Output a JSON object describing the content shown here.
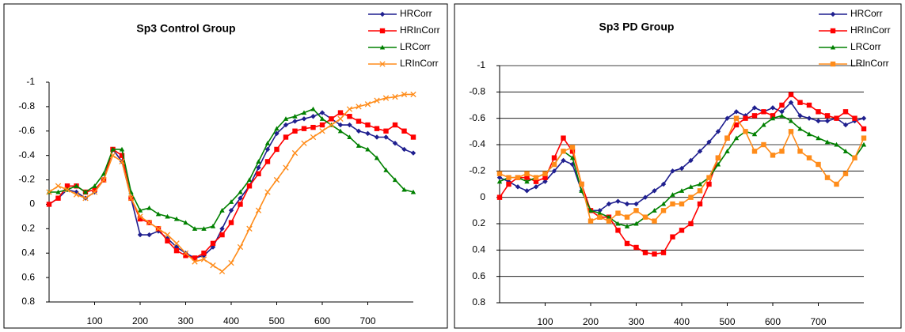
{
  "chart_data": [
    {
      "type": "line",
      "title": "Sp3 Control Group",
      "y_inverted": true,
      "grid": false,
      "xlim": [
        0,
        800
      ],
      "xticks": [
        100,
        200,
        300,
        400,
        500,
        600,
        700
      ],
      "ylim": [
        -1,
        0.8
      ],
      "yticks": [
        -1,
        -0.8,
        -0.6,
        -0.4,
        -0.2,
        0,
        0.2,
        0.4,
        0.6,
        0.8
      ],
      "x": [
        0,
        20,
        40,
        60,
        80,
        100,
        120,
        140,
        160,
        180,
        200,
        220,
        240,
        260,
        280,
        300,
        320,
        340,
        360,
        380,
        400,
        420,
        440,
        460,
        480,
        500,
        520,
        540,
        560,
        580,
        600,
        620,
        640,
        660,
        680,
        700,
        720,
        740,
        760,
        780,
        800
      ],
      "series": [
        {
          "name": "HRCorr",
          "color": "#1f1f8f",
          "marker": "diamond",
          "values": [
            0,
            -0.05,
            -0.12,
            -0.1,
            -0.05,
            -0.1,
            -0.2,
            -0.45,
            -0.35,
            -0.05,
            0.25,
            0.25,
            0.22,
            0.28,
            0.35,
            0.4,
            0.44,
            0.42,
            0.35,
            0.2,
            0.05,
            -0.05,
            -0.15,
            -0.3,
            -0.45,
            -0.58,
            -0.65,
            -0.68,
            -0.7,
            -0.72,
            -0.75,
            -0.7,
            -0.65,
            -0.65,
            -0.6,
            -0.58,
            -0.55,
            -0.55,
            -0.5,
            -0.45,
            -0.42
          ]
        },
        {
          "name": "HRInCorr",
          "color": "#ff0000",
          "marker": "square",
          "values": [
            0,
            -0.05,
            -0.15,
            -0.15,
            -0.1,
            -0.12,
            -0.2,
            -0.45,
            -0.4,
            -0.05,
            0.12,
            0.15,
            0.2,
            0.3,
            0.38,
            0.42,
            0.44,
            0.4,
            0.32,
            0.25,
            0.15,
            0.0,
            -0.15,
            -0.25,
            -0.35,
            -0.45,
            -0.55,
            -0.6,
            -0.62,
            -0.63,
            -0.65,
            -0.7,
            -0.75,
            -0.72,
            -0.68,
            -0.65,
            -0.62,
            -0.6,
            -0.65,
            -0.6,
            -0.55
          ]
        },
        {
          "name": "LRCorr",
          "color": "#008000",
          "marker": "triangle",
          "values": [
            -0.1,
            -0.1,
            -0.12,
            -0.15,
            -0.1,
            -0.15,
            -0.25,
            -0.45,
            -0.45,
            -0.1,
            0.05,
            0.03,
            0.08,
            0.1,
            0.12,
            0.15,
            0.2,
            0.2,
            0.18,
            0.05,
            -0.02,
            -0.1,
            -0.2,
            -0.35,
            -0.5,
            -0.62,
            -0.7,
            -0.72,
            -0.75,
            -0.78,
            -0.7,
            -0.65,
            -0.6,
            -0.55,
            -0.48,
            -0.45,
            -0.38,
            -0.28,
            -0.2,
            -0.12,
            -0.1
          ]
        },
        {
          "name": "LRInCorr",
          "color": "#ff8c1a",
          "marker": "cross",
          "values": [
            -0.1,
            -0.15,
            -0.12,
            -0.08,
            -0.05,
            -0.1,
            -0.2,
            -0.4,
            -0.35,
            -0.05,
            0.1,
            0.15,
            0.2,
            0.25,
            0.32,
            0.4,
            0.47,
            0.45,
            0.5,
            0.55,
            0.48,
            0.35,
            0.2,
            0.05,
            -0.1,
            -0.2,
            -0.3,
            -0.42,
            -0.5,
            -0.55,
            -0.6,
            -0.65,
            -0.7,
            -0.78,
            -0.8,
            -0.82,
            -0.85,
            -0.87,
            -0.88,
            -0.9,
            -0.9
          ]
        }
      ]
    },
    {
      "type": "line",
      "title": "Sp3 PD Group",
      "y_inverted": true,
      "grid": true,
      "xlim": [
        0,
        800
      ],
      "xticks": [
        100,
        200,
        300,
        400,
        500,
        600,
        700
      ],
      "ylim": [
        -1,
        0.8
      ],
      "yticks": [
        -1,
        -0.8,
        -0.6,
        -0.4,
        -0.2,
        0,
        0.2,
        0.4,
        0.6,
        0.8
      ],
      "x": [
        0,
        20,
        40,
        60,
        80,
        100,
        120,
        140,
        160,
        180,
        200,
        220,
        240,
        260,
        280,
        300,
        320,
        340,
        360,
        380,
        400,
        420,
        440,
        460,
        480,
        500,
        520,
        540,
        560,
        580,
        600,
        620,
        640,
        660,
        680,
        700,
        720,
        740,
        760,
        780,
        800
      ],
      "series": [
        {
          "name": "HRCorr",
          "color": "#1f1f8f",
          "marker": "diamond",
          "values": [
            -0.15,
            -0.12,
            -0.08,
            -0.05,
            -0.08,
            -0.12,
            -0.2,
            -0.28,
            -0.25,
            -0.05,
            0.1,
            0.1,
            0.05,
            0.03,
            0.05,
            0.05,
            0.0,
            -0.05,
            -0.1,
            -0.2,
            -0.22,
            -0.28,
            -0.35,
            -0.42,
            -0.5,
            -0.6,
            -0.65,
            -0.62,
            -0.68,
            -0.65,
            -0.68,
            -0.65,
            -0.72,
            -0.62,
            -0.6,
            -0.58,
            -0.58,
            -0.6,
            -0.55,
            -0.58,
            -0.6
          ]
        },
        {
          "name": "HRInCorr",
          "color": "#ff0000",
          "marker": "square",
          "values": [
            0,
            -0.1,
            -0.15,
            -0.15,
            -0.12,
            -0.15,
            -0.3,
            -0.45,
            -0.35,
            -0.1,
            0.1,
            0.15,
            0.15,
            0.25,
            0.35,
            0.38,
            0.42,
            0.43,
            0.42,
            0.3,
            0.25,
            0.2,
            0.05,
            -0.1,
            -0.3,
            -0.45,
            -0.55,
            -0.6,
            -0.62,
            -0.65,
            -0.62,
            -0.7,
            -0.78,
            -0.72,
            -0.7,
            -0.65,
            -0.62,
            -0.6,
            -0.65,
            -0.6,
            -0.52
          ]
        },
        {
          "name": "LRCorr",
          "color": "#008000",
          "marker": "triangle",
          "values": [
            -0.12,
            -0.15,
            -0.15,
            -0.12,
            -0.15,
            -0.18,
            -0.25,
            -0.35,
            -0.3,
            -0.05,
            0.1,
            0.12,
            0.15,
            0.2,
            0.22,
            0.2,
            0.15,
            0.1,
            0.05,
            -0.02,
            -0.05,
            -0.08,
            -0.1,
            -0.15,
            -0.25,
            -0.35,
            -0.45,
            -0.5,
            -0.48,
            -0.55,
            -0.6,
            -0.62,
            -0.58,
            -0.52,
            -0.48,
            -0.45,
            -0.42,
            -0.4,
            -0.35,
            -0.3,
            -0.4
          ]
        },
        {
          "name": "LRInCorr",
          "color": "#ff8c1a",
          "marker": "square",
          "values": [
            -0.18,
            -0.15,
            -0.15,
            -0.18,
            -0.15,
            -0.18,
            -0.25,
            -0.35,
            -0.38,
            -0.1,
            0.18,
            0.15,
            0.18,
            0.12,
            0.15,
            0.1,
            0.15,
            0.18,
            0.1,
            0.05,
            0.05,
            0.0,
            -0.05,
            -0.15,
            -0.3,
            -0.45,
            -0.6,
            -0.5,
            -0.35,
            -0.4,
            -0.32,
            -0.35,
            -0.5,
            -0.35,
            -0.3,
            -0.25,
            -0.15,
            -0.1,
            -0.18,
            -0.3,
            -0.45
          ]
        }
      ]
    }
  ]
}
